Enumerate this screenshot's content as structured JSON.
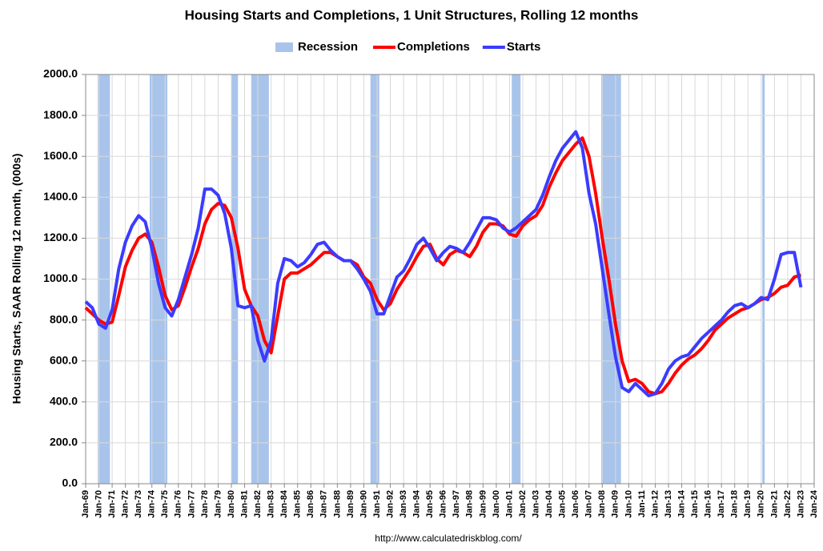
{
  "chart_data": {
    "type": "line",
    "title": "Housing Starts and Completions, 1 Unit Structures, Rolling 12 months",
    "y_label": "Housing Starts, SAAR Rolling 12 month, (000s)",
    "source": "http://www.calculatedriskblog.com/",
    "ylim": [
      0,
      2000
    ],
    "yticks": [
      {
        "value": 0,
        "label": "0.0"
      },
      {
        "value": 200,
        "label": "200.0"
      },
      {
        "value": 400,
        "label": "400.0"
      },
      {
        "value": 600,
        "label": "600.0"
      },
      {
        "value": 800,
        "label": "800.0"
      },
      {
        "value": 1000,
        "label": "1000.0"
      },
      {
        "value": 1200,
        "label": "1200.0"
      },
      {
        "value": 1400,
        "label": "1400.0"
      },
      {
        "value": 1600,
        "label": "1600.0"
      },
      {
        "value": 1800,
        "label": "1800.0"
      },
      {
        "value": 2000,
        "label": "2000.0"
      }
    ],
    "xlim": [
      "Jan-69",
      "Jan-24"
    ],
    "xticks": [
      "Jan-69",
      "Jan-70",
      "Jan-71",
      "Jan-72",
      "Jan-73",
      "Jan-74",
      "Jan-75",
      "Jan-76",
      "Jan-77",
      "Jan-78",
      "Jan-79",
      "Jan-80",
      "Jan-81",
      "Jan-82",
      "Jan-83",
      "Jan-84",
      "Jan-85",
      "Jan-86",
      "Jan-87",
      "Jan-88",
      "Jan-89",
      "Jan-90",
      "Jan-91",
      "Jan-92",
      "Jan-93",
      "Jan-94",
      "Jan-95",
      "Jan-96",
      "Jan-97",
      "Jan-98",
      "Jan-99",
      "Jan-00",
      "Jan-01",
      "Jan-02",
      "Jan-03",
      "Jan-04",
      "Jan-05",
      "Jan-06",
      "Jan-07",
      "Jan-08",
      "Jan-09",
      "Jan-10",
      "Jan-11",
      "Jan-12",
      "Jan-13",
      "Jan-14",
      "Jan-15",
      "Jan-16",
      "Jan-17",
      "Jan-18",
      "Jan-19",
      "Jan-20",
      "Jan-21",
      "Jan-22",
      "Jan-23",
      "Jan-24"
    ],
    "grid": true,
    "recession": {
      "name": "Recession",
      "color": "#a9c4eb",
      "periods": [
        [
          "Dec-69",
          "Nov-70"
        ],
        [
          "Nov-73",
          "Mar-75"
        ],
        [
          "Jan-80",
          "Jul-80"
        ],
        [
          "Jul-81",
          "Nov-82"
        ],
        [
          "Jul-90",
          "Mar-91"
        ],
        [
          "Mar-01",
          "Nov-01"
        ],
        [
          "Dec-07",
          "Jun-09"
        ],
        [
          "Feb-20",
          "Apr-20"
        ]
      ]
    },
    "x": [
      "Jan-69",
      "Jul-69",
      "Jan-70",
      "Jul-70",
      "Jan-71",
      "Jul-71",
      "Jan-72",
      "Jul-72",
      "Jan-73",
      "Jul-73",
      "Jan-74",
      "Jul-74",
      "Jan-75",
      "Jul-75",
      "Jan-76",
      "Jul-76",
      "Jan-77",
      "Jul-77",
      "Jan-78",
      "Jul-78",
      "Jan-79",
      "Jul-79",
      "Jan-80",
      "Jul-80",
      "Jan-81",
      "Jul-81",
      "Jan-82",
      "Jul-82",
      "Jan-83",
      "Jul-83",
      "Jan-84",
      "Jul-84",
      "Jan-85",
      "Jul-85",
      "Jan-86",
      "Jul-86",
      "Jan-87",
      "Jul-87",
      "Jan-88",
      "Jul-88",
      "Jan-89",
      "Jul-89",
      "Jan-90",
      "Jul-90",
      "Jan-91",
      "Jul-91",
      "Jan-92",
      "Jul-92",
      "Jan-93",
      "Jul-93",
      "Jan-94",
      "Jul-94",
      "Jan-95",
      "Jul-95",
      "Jan-96",
      "Jul-96",
      "Jan-97",
      "Jul-97",
      "Jan-98",
      "Jul-98",
      "Jan-99",
      "Jul-99",
      "Jan-00",
      "Jul-00",
      "Jan-01",
      "Jul-01",
      "Jan-02",
      "Jul-02",
      "Jan-03",
      "Jul-03",
      "Jan-04",
      "Jul-04",
      "Jan-05",
      "Jul-05",
      "Jan-06",
      "Jul-06",
      "Jan-07",
      "Jul-07",
      "Jan-08",
      "Jul-08",
      "Jan-09",
      "Jul-09",
      "Jan-10",
      "Jul-10",
      "Jan-11",
      "Jul-11",
      "Jan-12",
      "Jul-12",
      "Jan-13",
      "Jul-13",
      "Jan-14",
      "Jul-14",
      "Jan-15",
      "Jul-15",
      "Jan-16",
      "Jul-16",
      "Jan-17",
      "Jul-17",
      "Jan-18",
      "Jul-18",
      "Jan-19",
      "Jul-19",
      "Jan-20",
      "Jul-20",
      "Jan-21",
      "Jul-21",
      "Jan-22",
      "Jul-22",
      "Jan-23"
    ],
    "series": [
      {
        "name": "Completions",
        "color": "#ff0000",
        "values": [
          860,
          830,
          800,
          780,
          790,
          920,
          1060,
          1140,
          1200,
          1220,
          1180,
          1060,
          920,
          850,
          870,
          960,
          1060,
          1150,
          1270,
          1340,
          1370,
          1360,
          1300,
          1150,
          950,
          870,
          820,
          700,
          640,
          820,
          1000,
          1030,
          1030,
          1050,
          1070,
          1100,
          1130,
          1130,
          1110,
          1090,
          1090,
          1070,
          1010,
          980,
          900,
          850,
          880,
          950,
          1000,
          1050,
          1110,
          1160,
          1170,
          1100,
          1070,
          1120,
          1140,
          1130,
          1110,
          1160,
          1230,
          1270,
          1270,
          1260,
          1220,
          1210,
          1260,
          1290,
          1310,
          1360,
          1450,
          1520,
          1580,
          1620,
          1660,
          1690,
          1600,
          1420,
          1200,
          1000,
          780,
          600,
          500,
          510,
          490,
          450,
          440,
          450,
          490,
          540,
          580,
          610,
          630,
          660,
          700,
          750,
          780,
          810,
          830,
          850,
          860,
          880,
          900,
          910,
          930,
          960,
          970,
          1010,
          1020
        ]
      },
      {
        "name": "Starts",
        "color": "#3b3bff",
        "values": [
          890,
          860,
          780,
          760,
          850,
          1050,
          1180,
          1260,
          1310,
          1280,
          1150,
          980,
          860,
          820,
          900,
          1010,
          1120,
          1250,
          1440,
          1440,
          1410,
          1320,
          1150,
          870,
          860,
          870,
          700,
          600,
          700,
          980,
          1100,
          1090,
          1060,
          1080,
          1120,
          1170,
          1180,
          1140,
          1110,
          1090,
          1090,
          1050,
          1000,
          940,
          830,
          830,
          920,
          1010,
          1040,
          1100,
          1170,
          1200,
          1150,
          1090,
          1130,
          1160,
          1150,
          1130,
          1180,
          1240,
          1300,
          1300,
          1290,
          1250,
          1230,
          1250,
          1280,
          1310,
          1340,
          1410,
          1500,
          1580,
          1640,
          1680,
          1720,
          1640,
          1420,
          1270,
          1050,
          830,
          620,
          470,
          450,
          490,
          460,
          430,
          440,
          490,
          560,
          600,
          620,
          630,
          670,
          710,
          740,
          770,
          800,
          840,
          870,
          880,
          860,
          880,
          910,
          900,
          1000,
          1120,
          1130,
          1130,
          960
        ]
      }
    ]
  }
}
